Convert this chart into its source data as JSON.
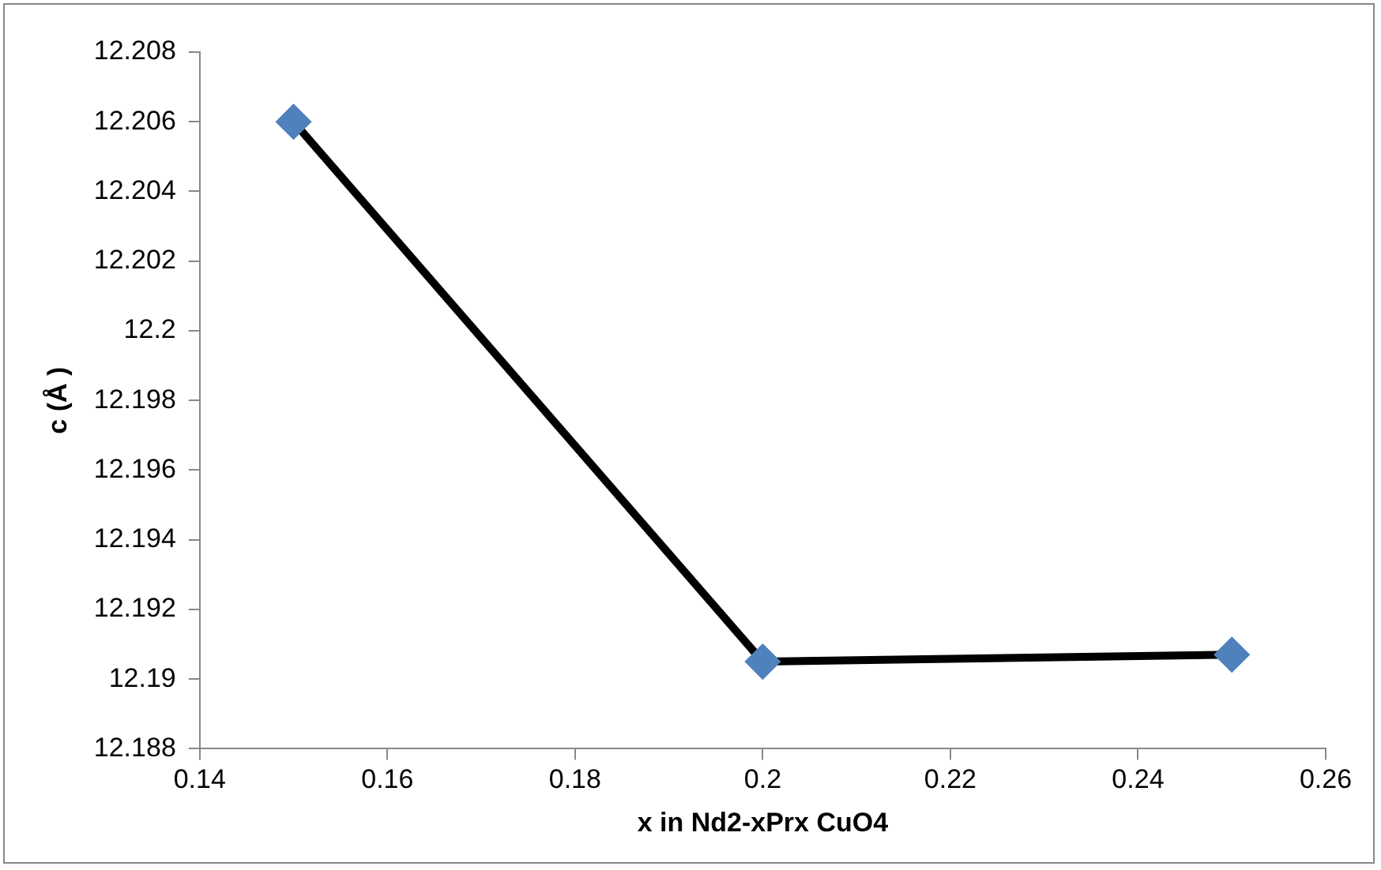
{
  "chart_data": {
    "type": "line",
    "xlabel": "x in Nd2-xPrx CuO4",
    "ylabel": "c (Å )",
    "x": [
      0.15,
      0.2,
      0.25
    ],
    "series": [
      {
        "color": "#000000",
        "colors": [
          "#4f81bd",
          "#4f81bd",
          "#4f81bd"
        ],
        "values": [
          12.206,
          12.1905,
          12.1907
        ]
      }
    ],
    "xlim": [
      0.14,
      0.26
    ],
    "xticks": [
      0.14,
      0.16,
      0.18,
      0.2,
      0.22,
      0.24,
      0.26
    ],
    "ylim": [
      12.188,
      12.208
    ],
    "yticks": [
      12.188,
      12.19,
      12.192,
      12.194,
      12.196,
      12.198,
      12.2,
      12.202,
      12.204,
      12.206,
      12.208
    ],
    "grid": false,
    "legend": false,
    "marker": "diamond",
    "line_style": "solid"
  }
}
